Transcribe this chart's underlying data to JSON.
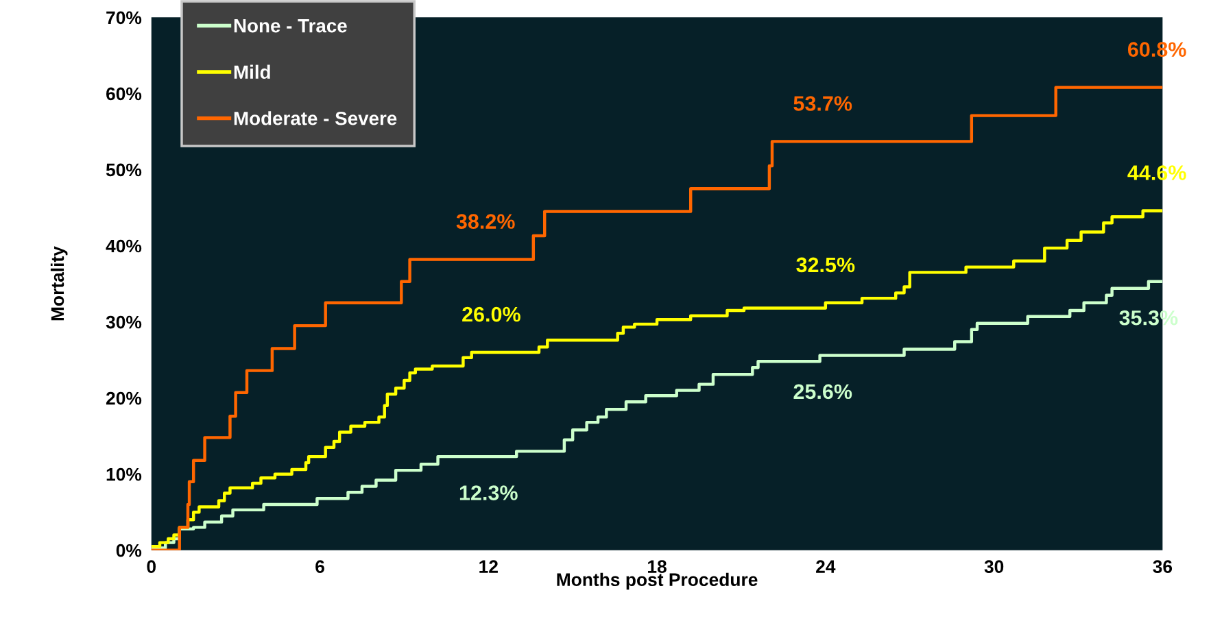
{
  "chart_data": {
    "type": "step",
    "xlabel": "Months post Procedure",
    "ylabel": "Mortality",
    "xlim": [
      0,
      36
    ],
    "xticks": [
      0,
      6,
      12,
      18,
      24,
      30,
      36
    ],
    "ylim": [
      0,
      70
    ],
    "yticks": [
      {
        "value": 0,
        "label": "0%"
      },
      {
        "value": 10,
        "label": "10%"
      },
      {
        "value": 20,
        "label": "20%"
      },
      {
        "value": 30,
        "label": "30%"
      },
      {
        "value": 40,
        "label": "40%"
      },
      {
        "value": 50,
        "label": "50%"
      },
      {
        "value": 60,
        "label": "60%"
      },
      {
        "value": 70,
        "label": "70%"
      }
    ],
    "grid": false,
    "legend": "top left",
    "marker": "none",
    "line_style": "solid",
    "series": [
      {
        "name": "None - Trace",
        "color": "#ccffcc",
        "x": [
          0,
          0.5,
          0.8,
          1.0,
          1.5,
          1.9,
          2.5,
          2.9,
          4.0,
          5.9,
          7.0,
          7.5,
          8.0,
          8.7,
          9.6,
          10.2,
          13.0,
          14.7,
          15.0,
          15.5,
          15.9,
          16.2,
          16.9,
          17.6,
          18.7,
          19.5,
          20.0,
          21.4,
          21.6,
          23.8,
          26.8,
          28.6,
          29.2,
          29.4,
          31.2,
          32.7,
          33.2,
          34.0,
          34.2,
          35.5,
          36
        ],
        "values": [
          0.3,
          1,
          1.5,
          2.8,
          3.0,
          3.7,
          4.5,
          5.3,
          6.0,
          6.8,
          7.6,
          8.4,
          9.2,
          10.5,
          11.3,
          12.3,
          13.0,
          14.5,
          15.8,
          16.8,
          17.5,
          18.5,
          19.5,
          20.3,
          21.0,
          21.8,
          23.1,
          24.0,
          24.8,
          25.6,
          26.4,
          27.4,
          29.0,
          29.8,
          30.7,
          31.5,
          32.5,
          33.5,
          34.4,
          35.3,
          35.3
        ]
      },
      {
        "name": "Mild",
        "color": "#ffff00",
        "x": [
          0,
          0.3,
          0.6,
          0.8,
          1.0,
          1.3,
          1.5,
          1.7,
          2.4,
          2.6,
          2.8,
          3.6,
          3.9,
          4.4,
          5.0,
          5.5,
          5.6,
          6.2,
          6.5,
          6.7,
          7.1,
          7.6,
          8.1,
          8.3,
          8.4,
          8.7,
          9.0,
          9.2,
          9.4,
          10.0,
          11.1,
          11.4,
          13.8,
          14.1,
          16.6,
          16.8,
          17.2,
          18.0,
          19.2,
          20.5,
          21.1,
          24.0,
          25.3,
          26.5,
          26.8,
          27.0,
          29.0,
          30.7,
          31.8,
          32.6,
          33.1,
          33.9,
          34.2,
          35.3,
          36
        ],
        "values": [
          0.5,
          1,
          1.5,
          2,
          3,
          4,
          5,
          5.7,
          6.5,
          7.5,
          8.2,
          8.8,
          9.5,
          10,
          10.6,
          11.5,
          12.3,
          13.5,
          14.3,
          15.5,
          16.3,
          16.8,
          17.5,
          19,
          20.5,
          21.3,
          22.3,
          23.3,
          23.8,
          24.2,
          25.3,
          26.0,
          26.7,
          27.6,
          28.5,
          29.3,
          29.7,
          30.3,
          30.8,
          31.5,
          31.8,
          32.5,
          33.1,
          33.8,
          34.6,
          36.5,
          37.2,
          38.0,
          39.7,
          40.7,
          41.8,
          43.0,
          43.8,
          44.6,
          44.6
        ]
      },
      {
        "name": "Moderate - Severe",
        "color": "#ff6600",
        "x": [
          0,
          1.0,
          1.3,
          1.35,
          1.5,
          1.9,
          2.8,
          3.0,
          3.4,
          4.3,
          5.1,
          6.2,
          8.9,
          9.2,
          13.6,
          14.0,
          19.2,
          22.0,
          22.1,
          29.2,
          32.2,
          36
        ],
        "values": [
          0,
          3.0,
          6.0,
          9.0,
          11.8,
          14.8,
          17.6,
          20.7,
          23.6,
          26.5,
          29.5,
          32.5,
          35.3,
          38.2,
          41.3,
          44.5,
          47.5,
          50.5,
          53.7,
          57.1,
          60.8,
          60.8
        ]
      }
    ],
    "annotations": [
      {
        "text": "38.2%",
        "x": 11.9,
        "y": 38.2
      },
      {
        "text": "26.0%",
        "x": 12.1,
        "y": 26.0
      },
      {
        "text": "12.3%",
        "x": 12.0,
        "y": 12.3
      },
      {
        "text": "53.7%",
        "x": 23.9,
        "y": 53.7
      },
      {
        "text": "32.5%",
        "x": 24.0,
        "y": 32.5
      },
      {
        "text": "25.6%",
        "x": 23.9,
        "y": 25.6
      },
      {
        "text": "60.8%",
        "x": 35.8,
        "y": 60.8
      },
      {
        "text": "44.6%",
        "x": 35.8,
        "y": 44.6
      },
      {
        "text": "35.3%",
        "x": 35.5,
        "y": 35.3
      }
    ]
  }
}
